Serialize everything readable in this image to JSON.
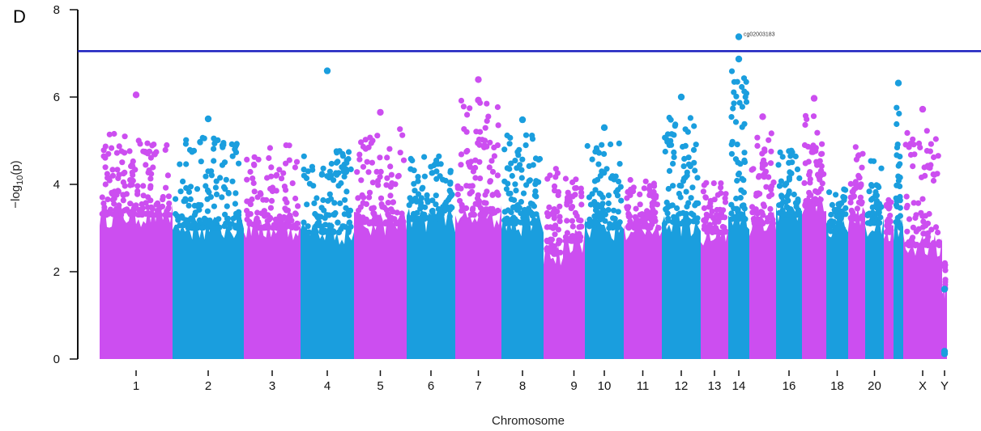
{
  "figure": {
    "panel_label": "D"
  },
  "colors": {
    "magenta": "#cc4ef0",
    "blue": "#1a9ede",
    "threshold": "#1a1fbf",
    "axis": "#111111"
  },
  "chart_data": {
    "type": "scatter",
    "title": "",
    "xlabel": "Chromosome",
    "ylabel": "-log10(p)",
    "ylabel_parts": {
      "prefix": "−log",
      "subscript": "10",
      "suffix": "(p)"
    },
    "ylim": [
      0,
      8
    ],
    "yticks": [
      0,
      2,
      4,
      6,
      8
    ],
    "grid": false,
    "legend": "none",
    "threshold": 7.05,
    "chromosomes": [
      {
        "name": "1",
        "label": "1",
        "color": "magenta",
        "width": 90,
        "base": 3.3,
        "peak": 5.5,
        "n": 160
      },
      {
        "name": "2",
        "label": "2",
        "color": "blue",
        "width": 88,
        "base": 3.0,
        "peak": 5.5,
        "n": 150
      },
      {
        "name": "3",
        "label": "3",
        "color": "magenta",
        "width": 70,
        "base": 3.0,
        "peak": 5.3,
        "n": 120
      },
      {
        "name": "4",
        "label": "4",
        "color": "blue",
        "width": 66,
        "base": 2.9,
        "peak": 5.1,
        "n": 115
      },
      {
        "name": "5",
        "label": "5",
        "color": "magenta",
        "width": 65,
        "base": 3.1,
        "peak": 5.65,
        "n": 110
      },
      {
        "name": "6",
        "label": "6",
        "color": "blue",
        "width": 60,
        "base": 3.2,
        "peak": 4.9,
        "n": 105
      },
      {
        "name": "7",
        "label": "7",
        "color": "magenta",
        "width": 57,
        "base": 3.3,
        "peak": 6.4,
        "n": 100
      },
      {
        "name": "8",
        "label": "8",
        "color": "blue",
        "width": 52,
        "base": 3.1,
        "peak": 5.5,
        "n": 95
      },
      {
        "name": "unl1",
        "label": "",
        "color": "magenta",
        "width": 24,
        "base": 2.4,
        "peak": 4.85,
        "n": 50
      },
      {
        "name": "9",
        "label": "9",
        "color": "magenta",
        "width": 27,
        "base": 2.7,
        "peak": 4.4,
        "n": 55
      },
      {
        "name": "10",
        "label": "10",
        "color": "blue",
        "width": 48,
        "base": 3.0,
        "peak": 5.3,
        "n": 90
      },
      {
        "name": "11",
        "label": "11",
        "color": "magenta",
        "width": 47,
        "base": 3.0,
        "peak": 4.3,
        "n": 90
      },
      {
        "name": "12",
        "label": "12",
        "color": "blue",
        "width": 48,
        "base": 3.1,
        "peak": 6.0,
        "n": 90
      },
      {
        "name": "13",
        "label": "13",
        "color": "magenta",
        "width": 34,
        "base": 2.9,
        "peak": 4.3,
        "n": 65
      },
      {
        "name": "14",
        "label": "14",
        "color": "blue",
        "width": 26,
        "base": 3.2,
        "peak": 7.38,
        "n": 60
      },
      {
        "name": "15",
        "label": "",
        "color": "magenta",
        "width": 33,
        "base": 3.1,
        "peak": 5.55,
        "n": 65
      },
      {
        "name": "16",
        "label": "16",
        "color": "blue",
        "width": 32,
        "base": 3.3,
        "peak": 5.1,
        "n": 65
      },
      {
        "name": "17",
        "label": "",
        "color": "magenta",
        "width": 30,
        "base": 3.5,
        "peak": 5.97,
        "n": 60
      },
      {
        "name": "18",
        "label": "18",
        "color": "blue",
        "width": 27,
        "base": 2.9,
        "peak": 4.1,
        "n": 55
      },
      {
        "name": "19",
        "label": "",
        "color": "magenta",
        "width": 21,
        "base": 3.2,
        "peak": 5.2,
        "n": 45
      },
      {
        "name": "20",
        "label": "20",
        "color": "blue",
        "width": 23,
        "base": 3.1,
        "peak": 4.85,
        "n": 45
      },
      {
        "name": "21",
        "label": "",
        "color": "magenta",
        "width": 12,
        "base": 2.9,
        "peak": 4.2,
        "n": 30
      },
      {
        "name": "22",
        "label": "",
        "color": "blue",
        "width": 12,
        "base": 3.0,
        "peak": 6.3,
        "n": 30
      },
      {
        "name": "X",
        "label": "X",
        "color": "magenta",
        "width": 48,
        "base": 2.6,
        "peak": 5.7,
        "n": 85
      },
      {
        "name": "Y",
        "label": "Y",
        "color": "magenta",
        "width": 6,
        "base": 1.6,
        "peak": 2.4,
        "n": 15
      }
    ],
    "highlights": [
      {
        "chromosome": "14",
        "y": 7.38,
        "color": "blue",
        "label": "cg02003183"
      },
      {
        "chromosome": "14",
        "y": 6.87,
        "color": "blue"
      },
      {
        "chromosome": "4",
        "y": 6.6,
        "color": "blue"
      },
      {
        "chromosome": "7",
        "y": 6.4,
        "color": "magenta"
      },
      {
        "chromosome": "22",
        "y": 6.32,
        "color": "blue"
      },
      {
        "chromosome": "1",
        "y": 6.05,
        "color": "magenta"
      },
      {
        "chromosome": "12",
        "y": 6.0,
        "color": "blue"
      },
      {
        "chromosome": "17",
        "y": 5.97,
        "color": "magenta"
      },
      {
        "chromosome": "7",
        "y": 5.93,
        "color": "magenta"
      },
      {
        "chromosome": "X",
        "y": 5.72,
        "color": "magenta"
      },
      {
        "chromosome": "5",
        "y": 5.65,
        "color": "magenta"
      },
      {
        "chromosome": "15",
        "y": 5.55,
        "color": "magenta"
      },
      {
        "chromosome": "2",
        "y": 5.5,
        "color": "blue"
      },
      {
        "chromosome": "8",
        "y": 5.48,
        "color": "blue"
      },
      {
        "chromosome": "10",
        "y": 5.3,
        "color": "blue"
      },
      {
        "chromosome": "Y",
        "y": 1.6,
        "color": "blue"
      },
      {
        "chromosome": "Y",
        "y": 0.18,
        "color": "blue"
      },
      {
        "chromosome": "Y",
        "y": 0.12,
        "color": "blue"
      }
    ]
  }
}
